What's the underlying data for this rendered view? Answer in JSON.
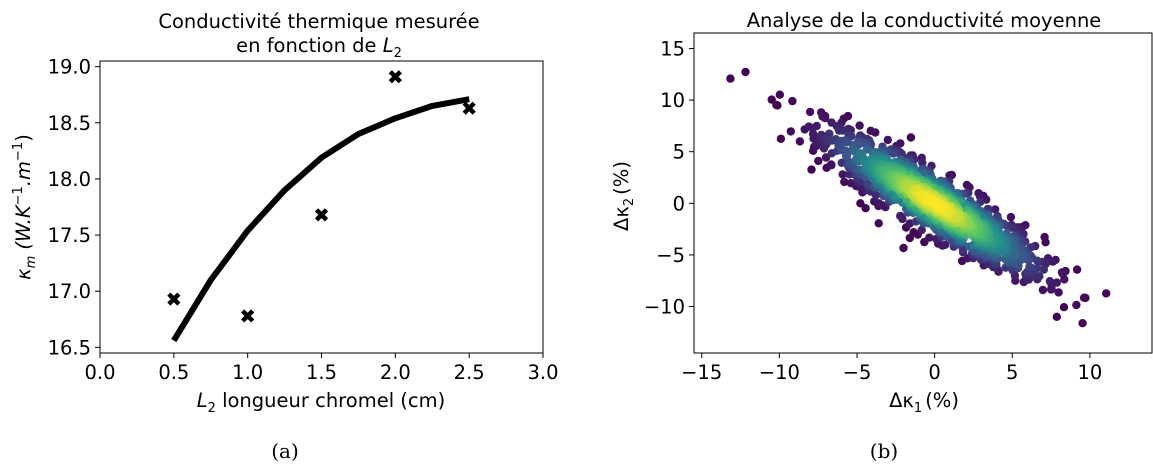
{
  "chart_data": [
    {
      "type": "scatter",
      "title_line1": "Conductivité thermique mesurée",
      "title_line2": "en fonction de ",
      "title_var": "L",
      "title_var_sub": "2",
      "xlabel_var": "L",
      "xlabel_var_sub": "2",
      "xlabel_text": " longueur chromel (cm)",
      "ylabel_kappa": "κ",
      "ylabel_kappa_sub": "m",
      "ylabel_units": "(W.K",
      "ylabel_sup1": "−1",
      "ylabel_mid": ".m",
      "ylabel_sup2": "−1",
      "ylabel_close": ")",
      "xlim": [
        0.0,
        3.0
      ],
      "ylim": [
        16.45,
        19.05
      ],
      "xticks": [
        0.0,
        0.5,
        1.0,
        1.5,
        2.0,
        2.5,
        3.0
      ],
      "xtick_labels": [
        "0.0",
        "0.5",
        "1.0",
        "1.5",
        "2.0",
        "2.5",
        "3.0"
      ],
      "yticks": [
        16.5,
        17.0,
        17.5,
        18.0,
        18.5,
        19.0
      ],
      "ytick_labels": [
        "16.5",
        "17.0",
        "17.5",
        "18.0",
        "18.5",
        "19.0"
      ],
      "points": {
        "x": [
          0.5,
          1.0,
          1.5,
          2.0,
          2.5
        ],
        "y": [
          16.93,
          16.78,
          17.68,
          18.91,
          18.63
        ],
        "marker": "X",
        "color": "#000000"
      },
      "fit": {
        "x": [
          0.5,
          0.75,
          1.0,
          1.25,
          1.5,
          1.75,
          2.0,
          2.25,
          2.5
        ],
        "y": [
          16.56,
          17.1,
          17.54,
          17.9,
          18.19,
          18.4,
          18.54,
          18.65,
          18.71
        ],
        "color": "#000000"
      },
      "caption": "(a)"
    },
    {
      "type": "scatter",
      "title": "Analyse de la conductivité moyenne",
      "xlabel_delta": "Δκ",
      "xlabel_sub": "1",
      "xlabel_unit": "(%)",
      "ylabel_delta": "Δκ",
      "ylabel_sub": "2",
      "ylabel_unit": "(%)",
      "xlim": [
        -15.5,
        14.0
      ],
      "ylim": [
        -14.5,
        16.5
      ],
      "xticks": [
        -15,
        -10,
        -5,
        0,
        5,
        10
      ],
      "xtick_labels": [
        "−15",
        "−10",
        "−5",
        "0",
        "5",
        "10"
      ],
      "yticks": [
        -10,
        -5,
        0,
        5,
        10,
        15
      ],
      "ytick_labels": [
        "−10",
        "−5",
        "0",
        "5",
        "10",
        "15"
      ],
      "colormap": "viridis",
      "colors": [
        "#440154",
        "#3b528b",
        "#21918c",
        "#5ec962",
        "#fde725"
      ],
      "distribution": {
        "n": 1200,
        "center": [
          0,
          0
        ],
        "std_kappa1": 3.5,
        "std_kappa2": 3.5,
        "correlation": -0.9
      },
      "caption": "(b)"
    }
  ]
}
